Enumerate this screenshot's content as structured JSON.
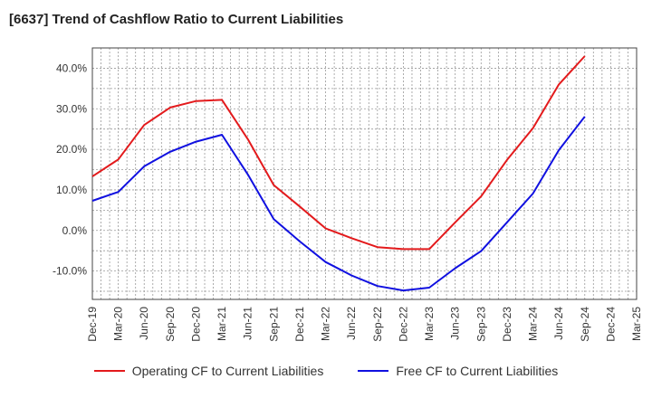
{
  "chart_data": {
    "type": "line",
    "title": "[6637]  Trend of Cashflow Ratio to Current Liabilities",
    "xlabel": "",
    "ylabel": "",
    "x": [
      "Dec-19",
      "Mar-20",
      "Jun-20",
      "Sep-20",
      "Dec-20",
      "Mar-21",
      "Jun-21",
      "Sep-21",
      "Dec-21",
      "Mar-22",
      "Jun-22",
      "Sep-22",
      "Dec-22",
      "Mar-23",
      "Jun-23",
      "Sep-23",
      "Dec-23",
      "Mar-24",
      "Jun-24",
      "Sep-24",
      "Dec-24",
      "Mar-25"
    ],
    "ylim": [
      -17,
      45
    ],
    "yticks": [
      -10,
      0,
      10,
      20,
      30,
      40
    ],
    "ytick_labels": [
      "-10.0%",
      "0.0%",
      "10.0%",
      "20.0%",
      "30.0%",
      "40.0%"
    ],
    "grid": true,
    "legend_position": "bottom",
    "series": [
      {
        "name": "Operating CF to Current Liabilities",
        "color": "#e31a1c",
        "values": [
          13.3,
          17.5,
          26.0,
          30.3,
          31.9,
          32.2,
          22.5,
          11.2,
          5.9,
          0.5,
          -1.9,
          -4.1,
          -4.6,
          -4.6,
          2.0,
          8.4,
          17.4,
          25.2,
          36.0,
          43.0,
          null,
          null
        ]
      },
      {
        "name": "Free CF to Current Liabilities",
        "color": "#1010e0",
        "values": [
          7.3,
          9.5,
          15.8,
          19.4,
          21.9,
          23.6,
          13.8,
          2.8,
          -2.7,
          -7.8,
          -11.1,
          -13.7,
          -14.8,
          -14.1,
          -9.3,
          -5.1,
          2.0,
          9.1,
          19.8,
          28.1,
          null,
          null
        ]
      }
    ]
  }
}
